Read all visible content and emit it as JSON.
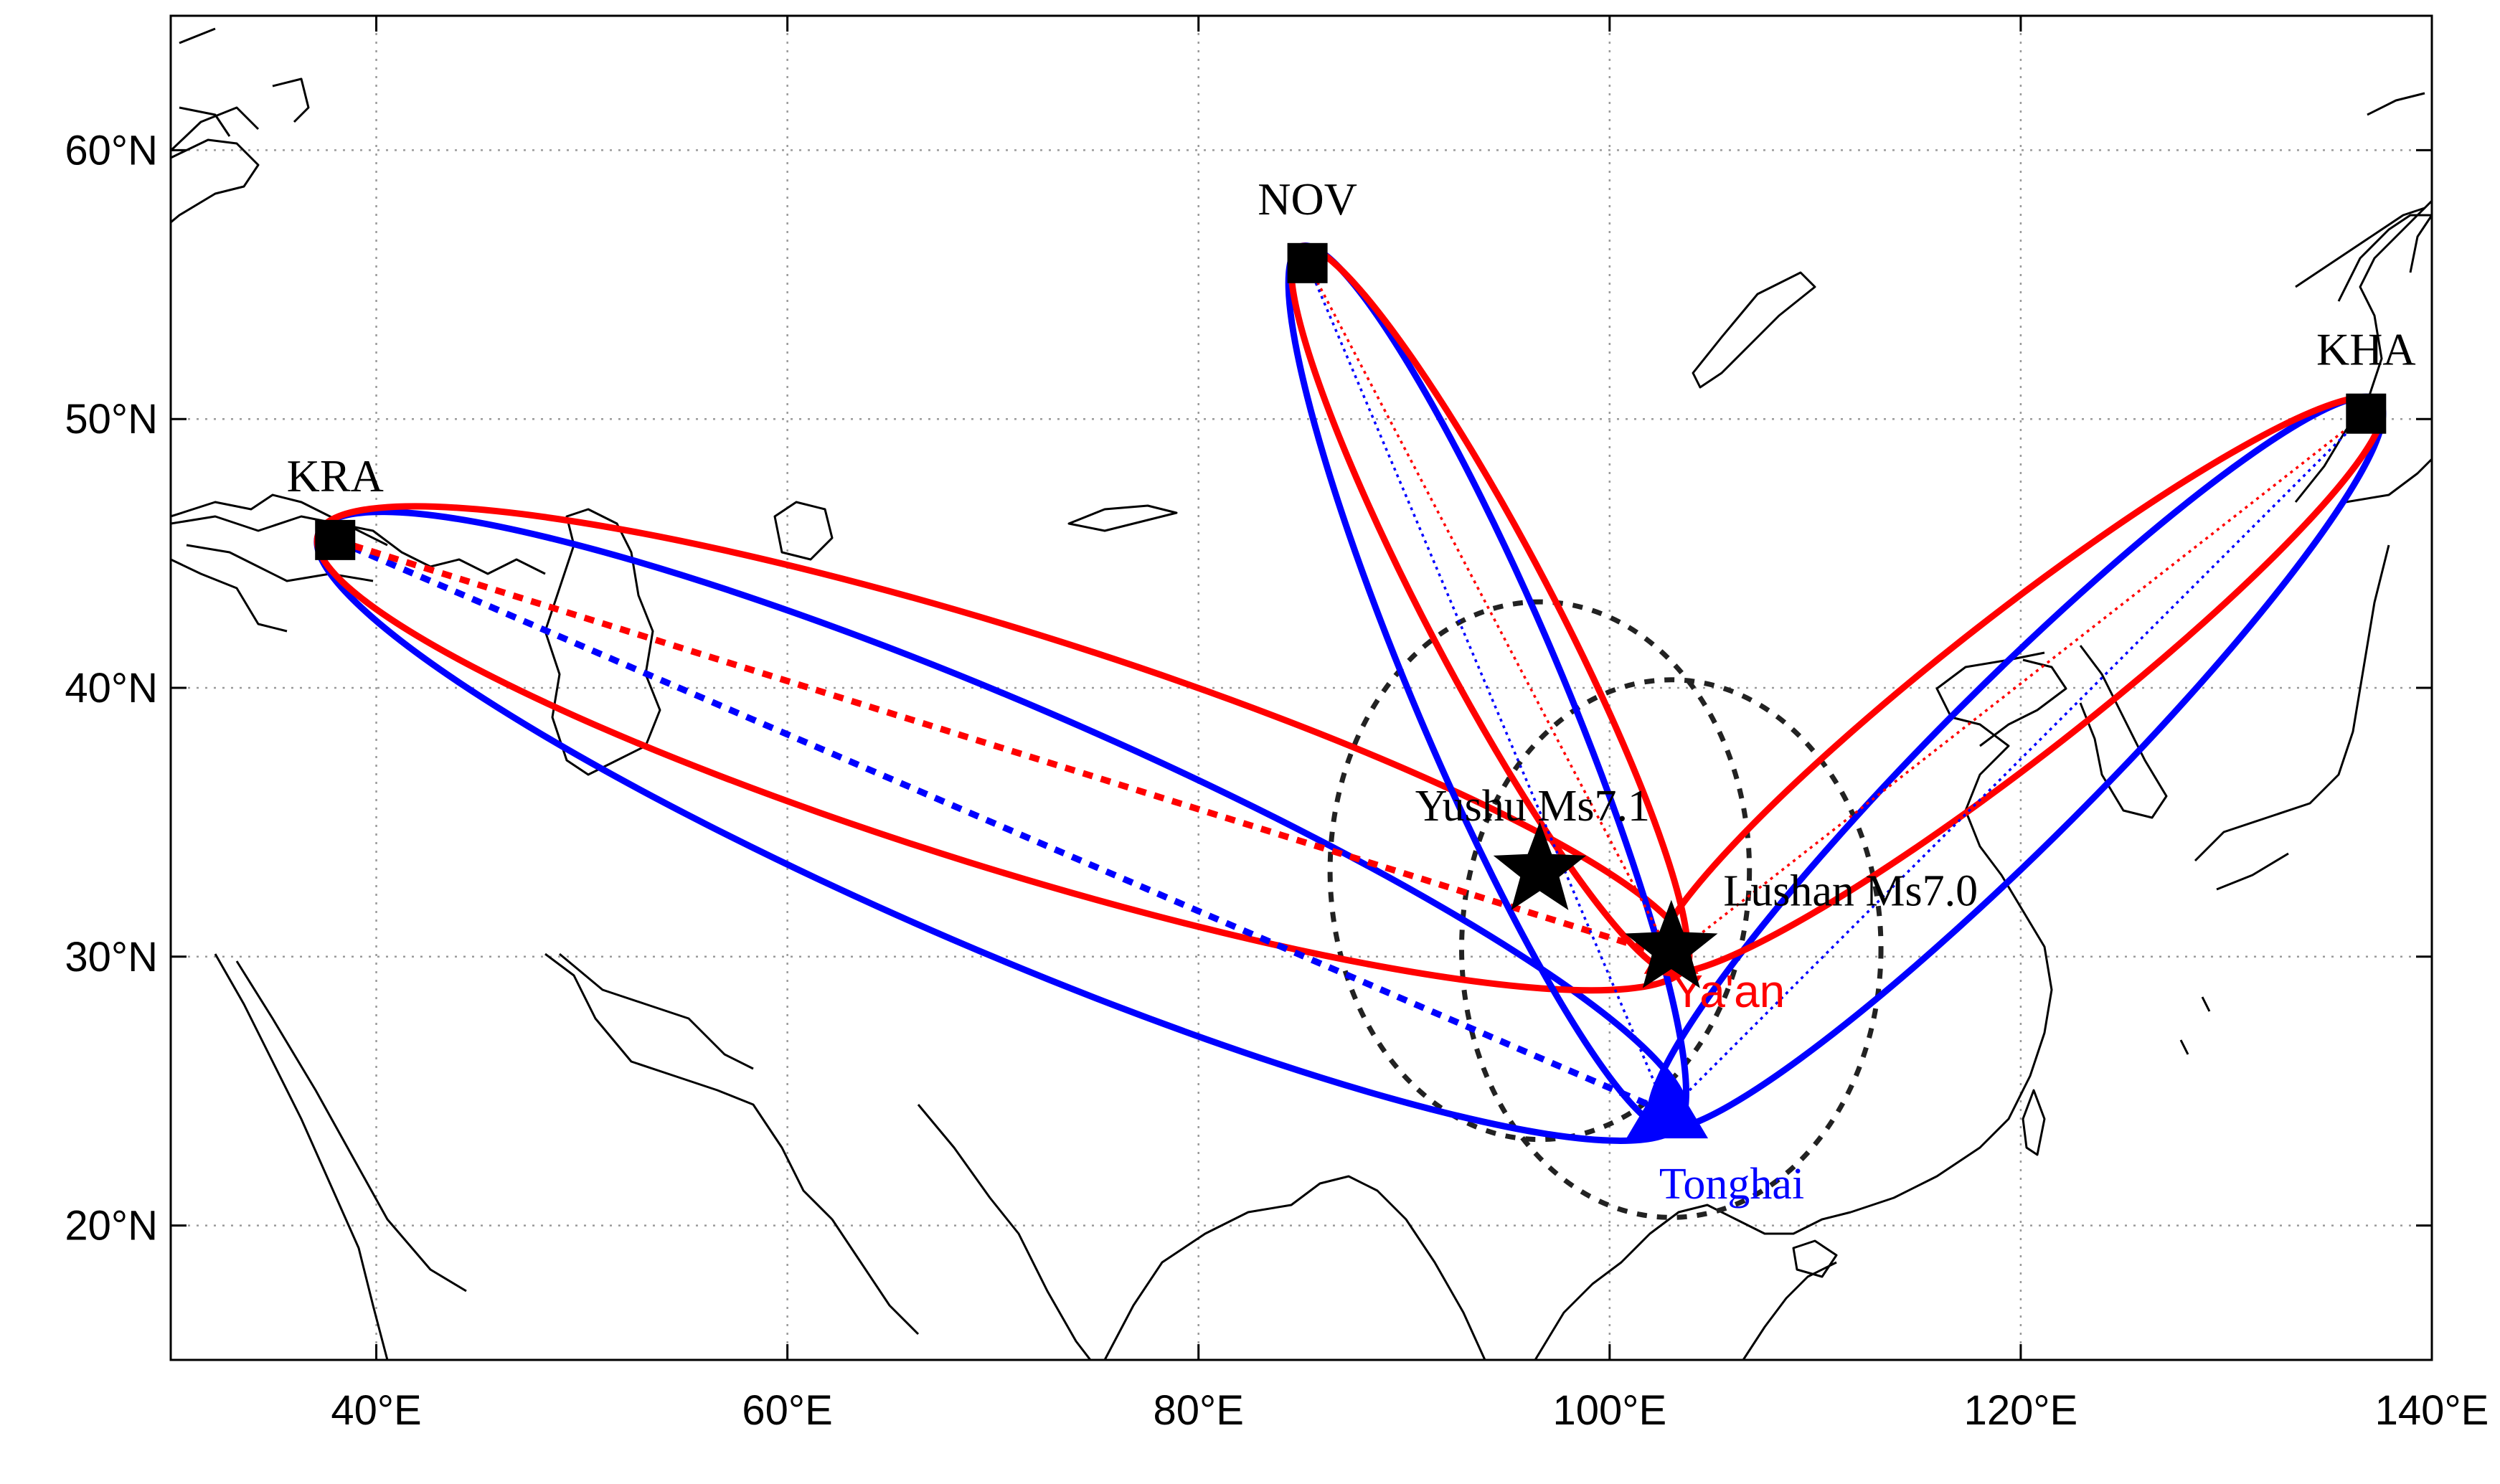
{
  "map": {
    "extent": {
      "lon": [
        30,
        140
      ],
      "lat": [
        15,
        65
      ]
    },
    "x_ticks": [
      {
        "lon": 40,
        "label": "40°E"
      },
      {
        "lon": 60,
        "label": "60°E"
      },
      {
        "lon": 80,
        "label": "80°E"
      },
      {
        "lon": 100,
        "label": "100°E"
      },
      {
        "lon": 120,
        "label": "120°E"
      },
      {
        "lon": 140,
        "label": "140°E"
      }
    ],
    "y_ticks": [
      {
        "lat": 20,
        "label": "20°N"
      },
      {
        "lat": 30,
        "label": "30°N"
      },
      {
        "lat": 40,
        "label": "40°N"
      },
      {
        "lat": 50,
        "label": "50°N"
      },
      {
        "lat": 60,
        "label": "60°N"
      }
    ],
    "grid": "dotted",
    "colors": {
      "ya_an": "#ff0000",
      "tonghai": "#0000ff",
      "circle": "#222222",
      "coast": "#000000"
    }
  },
  "stations": [
    {
      "id": "KRA",
      "label": "KRA",
      "lon": 38.0,
      "lat": 45.5
    },
    {
      "id": "NOV",
      "label": "NOV",
      "lon": 85.3,
      "lat": 55.8
    },
    {
      "id": "KHA",
      "label": "KHA",
      "lon": 136.8,
      "lat": 50.2
    }
  ],
  "receivers": [
    {
      "id": "yaan",
      "label": "Ya'an",
      "lon": 103.0,
      "lat": 30.0,
      "color": "#ff0000",
      "symbol": "triangle"
    },
    {
      "id": "tonghai",
      "label": "Tonghai",
      "lon": 102.8,
      "lat": 24.2,
      "color": "#0000ff",
      "symbol": "triangle"
    }
  ],
  "earthquakes": [
    {
      "id": "yushu",
      "label": "Yushu Ms7.1",
      "lon": 96.6,
      "lat": 33.2,
      "circle_radius_deg": 10
    },
    {
      "id": "lushan",
      "label": "Lushan Ms7.0",
      "lon": 103.0,
      "lat": 30.3,
      "circle_radius_deg": 10
    }
  ]
}
